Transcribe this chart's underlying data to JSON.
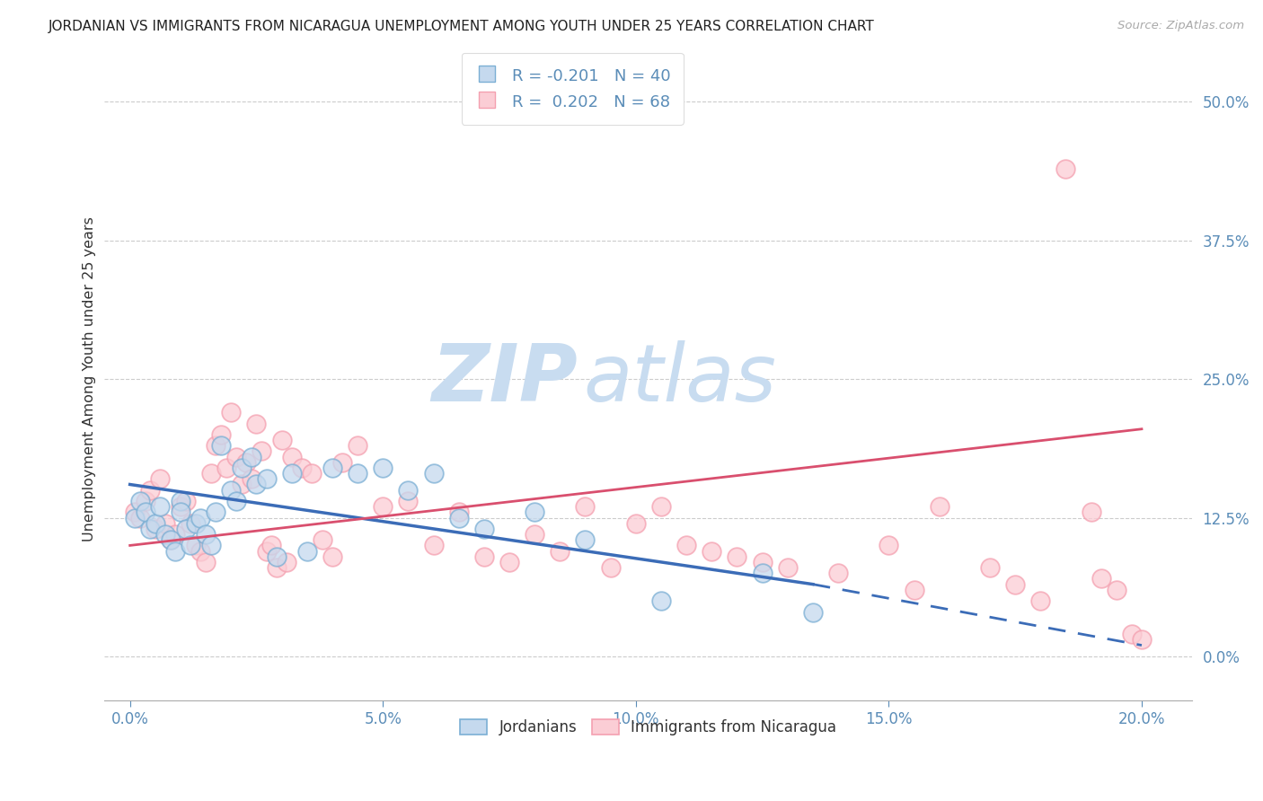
{
  "title": "JORDANIAN VS IMMIGRANTS FROM NICARAGUA UNEMPLOYMENT AMONG YOUTH UNDER 25 YEARS CORRELATION CHART",
  "source": "Source: ZipAtlas.com",
  "ylabel": "Unemployment Among Youth under 25 years",
  "xlabel_ticks": [
    "0.0%",
    "5.0%",
    "10.0%",
    "15.0%",
    "20.0%"
  ],
  "xlabel_vals": [
    0.0,
    5.0,
    10.0,
    15.0,
    20.0
  ],
  "ylabel_ticks": [
    "0.0%",
    "12.5%",
    "25.0%",
    "37.5%",
    "50.0%"
  ],
  "ylabel_vals": [
    0.0,
    12.5,
    25.0,
    37.5,
    50.0
  ],
  "xlim": [
    -0.5,
    21.0
  ],
  "ylim": [
    -4.0,
    54.0
  ],
  "legend_labels": [
    "Jordanians",
    "Immigrants from Nicaragua"
  ],
  "blue_color": "#7BAFD4",
  "pink_color": "#F4A0B0",
  "blue_face": "#C5D9EE",
  "pink_face": "#FBCDD5",
  "trend_blue": "#3B6CB7",
  "trend_pink": "#D94F6E",
  "watermark_zip": "ZIP",
  "watermark_atlas": "atlas",
  "watermark_color_zip": "#C8DCF0",
  "watermark_color_atlas": "#C8DCF0",
  "background": "#FFFFFF",
  "grid_color": "#CCCCCC",
  "title_color": "#222222",
  "axis_label_color": "#333333",
  "tick_color": "#5B8DB8",
  "blue_scatter_x": [
    0.1,
    0.2,
    0.3,
    0.4,
    0.5,
    0.6,
    0.7,
    0.8,
    0.9,
    1.0,
    1.0,
    1.1,
    1.2,
    1.3,
    1.4,
    1.5,
    1.6,
    1.7,
    1.8,
    2.0,
    2.1,
    2.2,
    2.4,
    2.5,
    2.7,
    2.9,
    3.2,
    3.5,
    4.0,
    4.5,
    5.0,
    5.5,
    6.0,
    6.5,
    7.0,
    8.0,
    9.0,
    10.5,
    12.5,
    13.5
  ],
  "blue_scatter_y": [
    12.5,
    14.0,
    13.0,
    11.5,
    12.0,
    13.5,
    11.0,
    10.5,
    9.5,
    14.0,
    13.0,
    11.5,
    10.0,
    12.0,
    12.5,
    11.0,
    10.0,
    13.0,
    19.0,
    15.0,
    14.0,
    17.0,
    18.0,
    15.5,
    16.0,
    9.0,
    16.5,
    9.5,
    17.0,
    16.5,
    17.0,
    15.0,
    16.5,
    12.5,
    11.5,
    13.0,
    10.5,
    5.0,
    7.5,
    4.0
  ],
  "pink_scatter_x": [
    0.1,
    0.2,
    0.3,
    0.4,
    0.5,
    0.6,
    0.7,
    0.8,
    0.9,
    1.0,
    1.1,
    1.2,
    1.3,
    1.4,
    1.5,
    1.6,
    1.7,
    1.8,
    1.9,
    2.0,
    2.1,
    2.2,
    2.3,
    2.4,
    2.5,
    2.6,
    2.7,
    2.8,
    2.9,
    3.0,
    3.1,
    3.2,
    3.4,
    3.6,
    3.8,
    4.0,
    4.2,
    4.5,
    5.0,
    5.5,
    6.0,
    6.5,
    7.0,
    7.5,
    8.0,
    8.5,
    9.0,
    9.5,
    10.0,
    10.5,
    11.0,
    11.5,
    12.0,
    12.5,
    13.0,
    14.0,
    15.0,
    15.5,
    16.0,
    17.0,
    17.5,
    18.0,
    18.5,
    19.0,
    19.2,
    19.5,
    19.8,
    20.0
  ],
  "pink_scatter_y": [
    13.0,
    12.5,
    14.0,
    15.0,
    11.5,
    16.0,
    12.0,
    10.5,
    11.0,
    13.5,
    14.0,
    12.0,
    10.0,
    9.5,
    8.5,
    16.5,
    19.0,
    20.0,
    17.0,
    22.0,
    18.0,
    15.5,
    17.5,
    16.0,
    21.0,
    18.5,
    9.5,
    10.0,
    8.0,
    19.5,
    8.5,
    18.0,
    17.0,
    16.5,
    10.5,
    9.0,
    17.5,
    19.0,
    13.5,
    14.0,
    10.0,
    13.0,
    9.0,
    8.5,
    11.0,
    9.5,
    13.5,
    8.0,
    12.0,
    13.5,
    10.0,
    9.5,
    9.0,
    8.5,
    8.0,
    7.5,
    10.0,
    6.0,
    13.5,
    8.0,
    6.5,
    5.0,
    44.0,
    13.0,
    7.0,
    6.0,
    2.0,
    1.5
  ],
  "blue_trend_x0": 0.0,
  "blue_trend_x_solid_end": 13.5,
  "blue_trend_x_dash_end": 20.0,
  "blue_trend_y0": 15.5,
  "blue_trend_y_solid_end": 6.5,
  "blue_trend_y_dash_end": 1.0,
  "pink_trend_x0": 0.0,
  "pink_trend_x_end": 20.0,
  "pink_trend_y0": 10.0,
  "pink_trend_y_end": 20.5
}
